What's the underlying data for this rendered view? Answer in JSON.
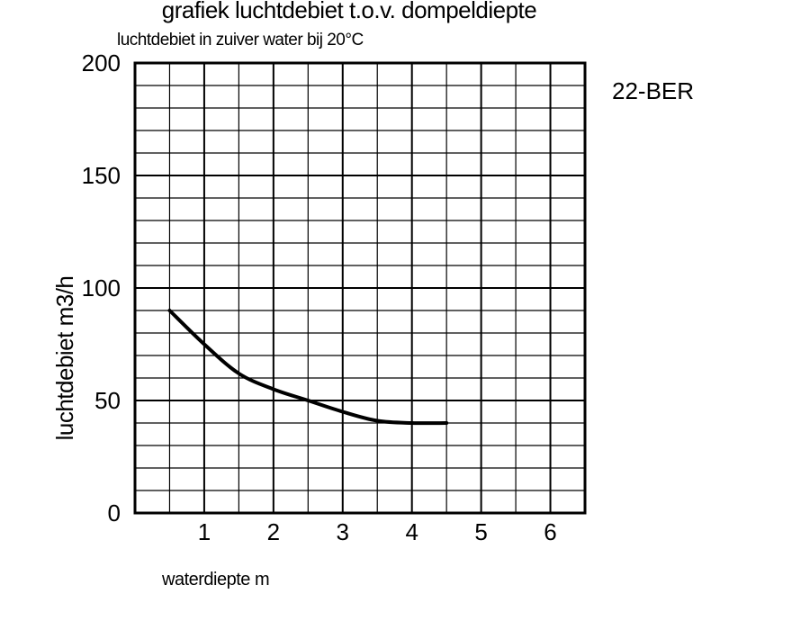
{
  "chart_data": {
    "type": "line",
    "title": "grafiek luchtdebiet t.o.v. dompeldiepte",
    "subtitle": "luchtdebiet in zuiver water bij 20°C",
    "model": "22-BER",
    "xlabel": "waterdiepte m",
    "ylabel": "luchtdebiet m3/h",
    "xlim": [
      0,
      6.5
    ],
    "ylim": [
      0,
      200
    ],
    "xticks": [
      "1",
      "2",
      "3",
      "4",
      "5",
      "6"
    ],
    "yticks": [
      "0",
      "50",
      "100",
      "150",
      "200"
    ],
    "grid": true,
    "series": [
      {
        "x": [
          0.5,
          1.0,
          1.5,
          2.0,
          2.5,
          3.0,
          3.5,
          4.0,
          4.5
        ],
        "y": [
          90,
          75,
          62,
          55,
          50,
          45,
          41,
          40,
          40
        ]
      }
    ]
  }
}
